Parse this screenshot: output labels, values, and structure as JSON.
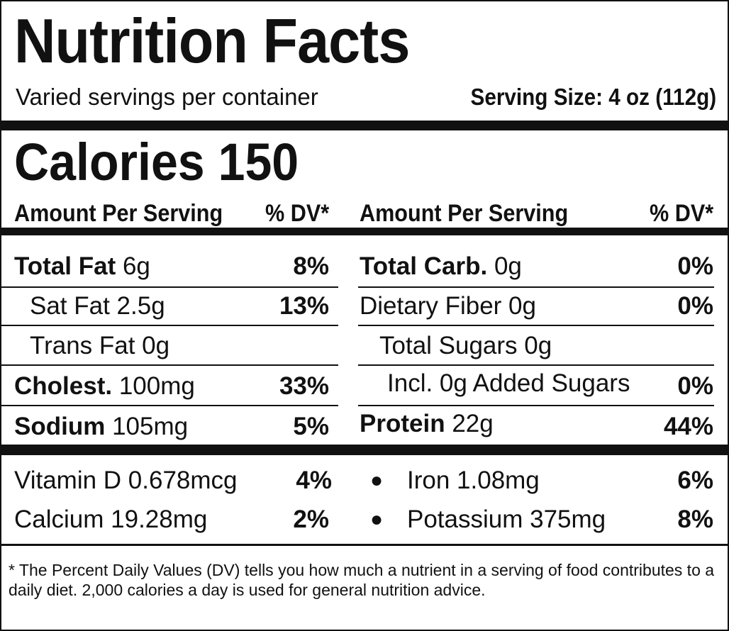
{
  "title": "Nutrition Facts",
  "servings": "Varied servings per container",
  "serving_size": "Serving Size: 4 oz (112g)",
  "calories_label": "Calories",
  "calories_value": "150",
  "col_header_left": {
    "amount": "Amount Per Serving",
    "dv": "% DV*"
  },
  "col_header_right": {
    "amount": "Amount Per Serving",
    "dv": "% DV*"
  },
  "left": [
    {
      "name": "Total Fat",
      "amount": "6g",
      "dv": "8%"
    },
    {
      "name": "Sat Fat 2.5g",
      "dv": "13%"
    },
    {
      "name": "Trans Fat 0g",
      "dv": ""
    },
    {
      "name": "Cholest.",
      "amount": "100mg",
      "dv": "33%"
    },
    {
      "name": "Sodium",
      "amount": "105mg",
      "dv": "5%"
    }
  ],
  "right": [
    {
      "name": "Total Carb.",
      "amount": "0g",
      "dv": "0%"
    },
    {
      "name": "Dietary Fiber 0g",
      "dv": "0%"
    },
    {
      "name": "Total Sugars 0g",
      "dv": ""
    },
    {
      "name": "Incl. 0g Added Sugars",
      "dv": "0%"
    },
    {
      "name": "Protein",
      "amount": "22g",
      "dv": "44%"
    }
  ],
  "vitamins_left": [
    {
      "name": "Vitamin D 0.678mcg",
      "dv": "4%"
    },
    {
      "name": "Calcium 19.28mg",
      "dv": "2%"
    }
  ],
  "vitamins_right": [
    {
      "bullet": "●",
      "name": "Iron 1.08mg",
      "dv": "6%"
    },
    {
      "bullet": "●",
      "name": "Potassium 375mg",
      "dv": "8%"
    }
  ],
  "footnote": "* The Percent Daily Values (DV) tells you how much a nutrient in a serving of food  contributes to a daily diet. 2,000 calories a day is used for general nutrition advice."
}
